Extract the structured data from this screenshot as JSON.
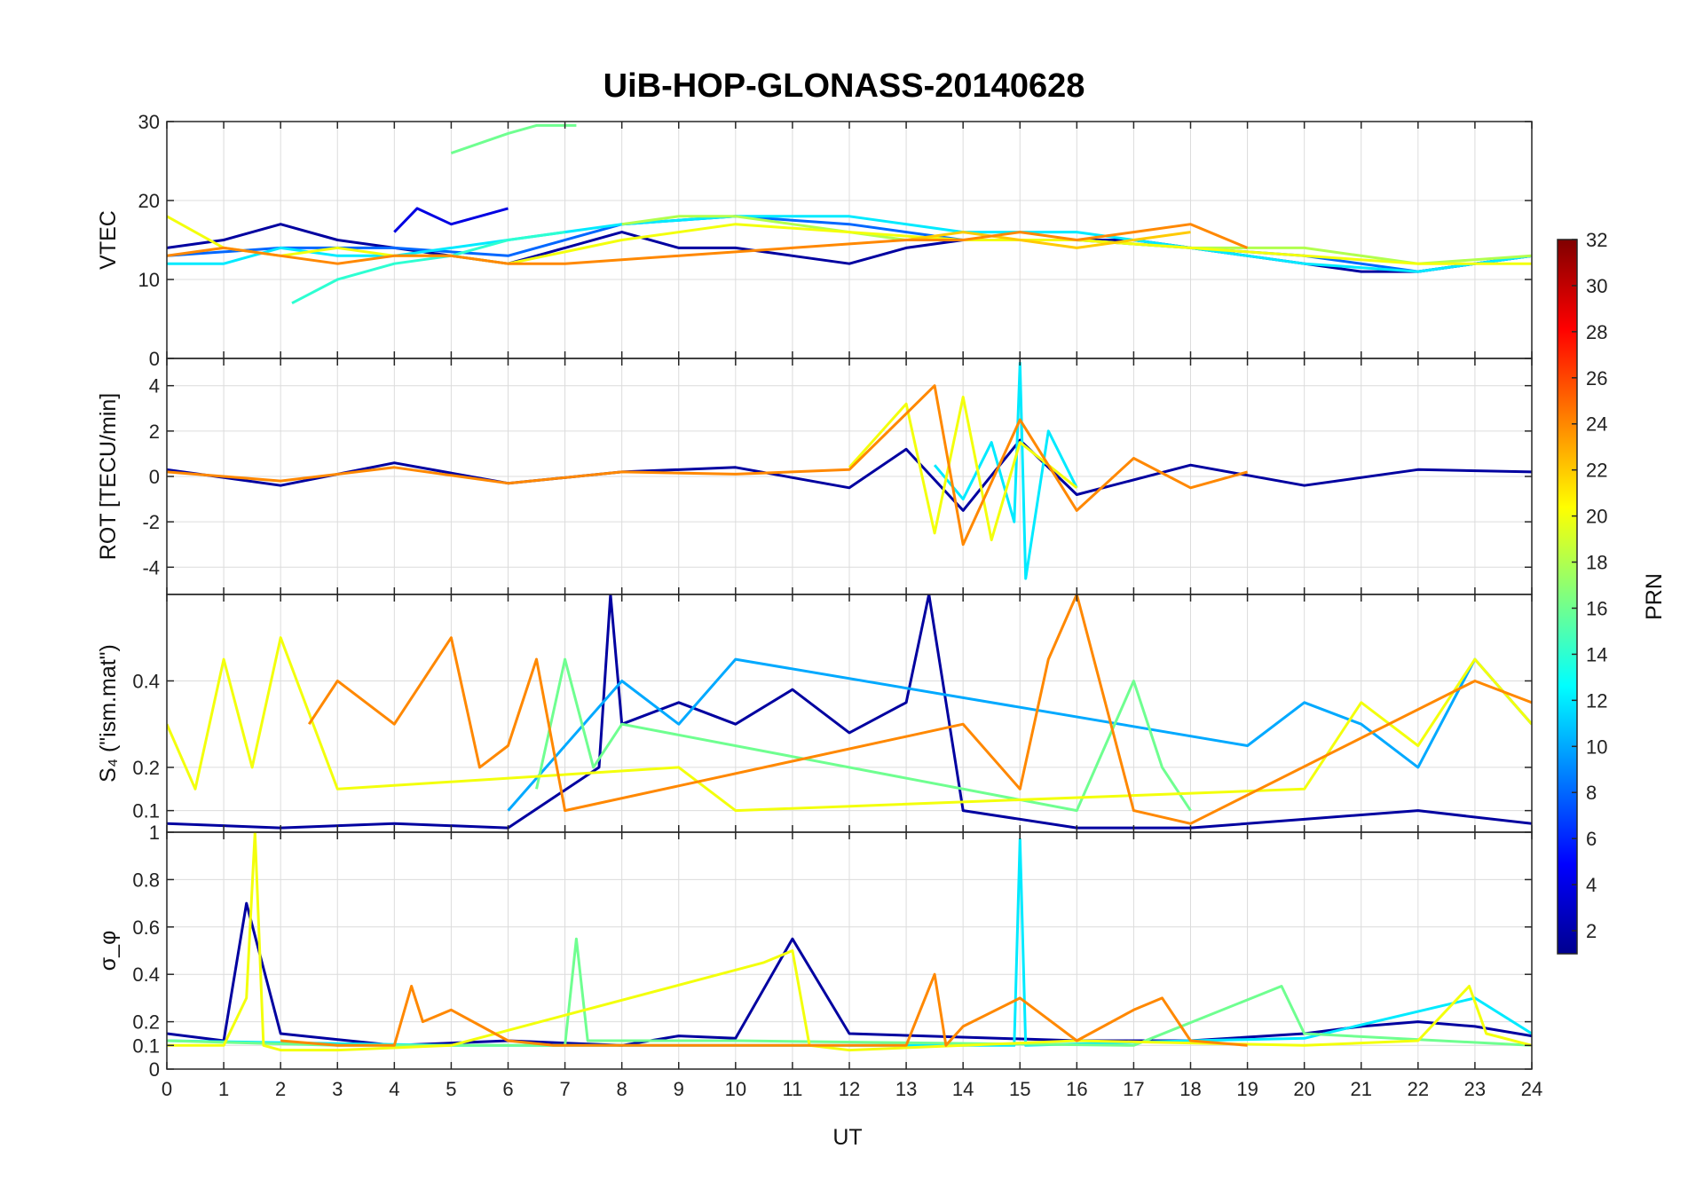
{
  "figure": {
    "title": "UiB-HOP-GLONASS-20140628",
    "xlabel": "UT"
  },
  "chart_data": [
    {
      "type": "line",
      "panel": "vtec",
      "title": "UiB-HOP-GLONASS-20140628",
      "ylabel": "VTEC",
      "xlim": [
        0,
        24
      ],
      "ylim": [
        0,
        30
      ],
      "xticks": [
        0,
        1,
        2,
        3,
        4,
        5,
        6,
        7,
        8,
        9,
        10,
        11,
        12,
        13,
        14,
        15,
        16,
        17,
        18,
        19,
        20,
        21,
        22,
        23,
        24
      ],
      "yticks": [
        0,
        10,
        20,
        30
      ],
      "series": [
        {
          "name": "PRN 2",
          "prn": 2,
          "x": [
            0,
            1,
            2,
            3,
            4,
            5,
            6,
            7,
            8,
            9,
            10,
            11,
            12,
            13,
            14,
            15,
            16,
            17,
            18,
            19,
            20,
            21,
            22,
            23,
            24
          ],
          "y": [
            14,
            15,
            17,
            15,
            14,
            13,
            12,
            14,
            16,
            14,
            14,
            13,
            12,
            14,
            15,
            15,
            15,
            15,
            14,
            13,
            12,
            11,
            11,
            12,
            13
          ]
        },
        {
          "name": "PRN 4",
          "prn": 4,
          "x": [
            4,
            4.4,
            5,
            6
          ],
          "y": [
            16,
            19,
            17,
            19
          ]
        },
        {
          "name": "PRN 8",
          "prn": 8,
          "x": [
            0,
            2,
            4,
            6,
            8,
            10,
            12,
            14,
            16,
            18,
            20,
            22,
            24
          ],
          "y": [
            13,
            14,
            14,
            13,
            17,
            18,
            17,
            15,
            15,
            14,
            13,
            11,
            13
          ]
        },
        {
          "name": "PRN 12",
          "prn": 12,
          "x": [
            0,
            1,
            2,
            3,
            4,
            6,
            8,
            10,
            12,
            14,
            16,
            18,
            20,
            22,
            24
          ],
          "y": [
            12,
            12,
            14,
            13,
            13,
            15,
            17,
            18,
            18,
            16,
            16,
            14,
            12,
            11,
            13
          ]
        },
        {
          "name": "PRN 14",
          "prn": 14,
          "x": [
            2.2,
            3,
            4,
            5,
            6,
            7
          ],
          "y": [
            7,
            10,
            12,
            13,
            15,
            16
          ]
        },
        {
          "name": "PRN 16",
          "prn": 16,
          "x": [
            5,
            6,
            6.5,
            7,
            7.2
          ],
          "y": [
            26,
            28.5,
            29.5,
            29.5,
            29.5
          ]
        },
        {
          "name": "PRN 18",
          "prn": 18,
          "x": [
            8,
            9,
            10,
            11,
            12,
            13,
            14,
            16,
            18,
            20,
            22,
            24
          ],
          "y": [
            17,
            18,
            18,
            17,
            16,
            15,
            15,
            15,
            14,
            14,
            12,
            13
          ]
        },
        {
          "name": "PRN 20",
          "prn": 20,
          "x": [
            0,
            1,
            2,
            3,
            4,
            5,
            6,
            8,
            10,
            12,
            14,
            16,
            18,
            20,
            22,
            24
          ],
          "y": [
            18,
            14,
            13,
            14,
            13,
            13,
            12,
            15,
            17,
            16,
            15,
            15,
            14,
            13,
            12,
            12
          ]
        },
        {
          "name": "PRN 22",
          "prn": 22,
          "x": [
            13,
            14,
            15,
            16,
            17,
            18
          ],
          "y": [
            15,
            16,
            15,
            14,
            15,
            16
          ]
        },
        {
          "name": "PRN 24",
          "prn": 24,
          "x": [
            0,
            1,
            2,
            3,
            4,
            5,
            6,
            7,
            13,
            14,
            15,
            16,
            17,
            18,
            19
          ],
          "y": [
            13,
            14,
            13,
            12,
            13,
            13,
            12,
            12,
            15,
            15,
            16,
            15,
            16,
            17,
            14
          ]
        }
      ]
    },
    {
      "type": "line",
      "panel": "rot",
      "ylabel": "ROT [TECU/min]",
      "xlim": [
        0,
        24
      ],
      "ylim": [
        -5.2,
        5.2
      ],
      "yticks": [
        -4,
        -2,
        0,
        2,
        4
      ],
      "series": [
        {
          "name": "PRN 2",
          "prn": 2,
          "x": [
            0,
            2,
            4,
            6,
            8,
            10,
            12,
            13,
            14,
            15,
            16,
            18,
            20,
            22,
            24
          ],
          "y": [
            0.3,
            -0.4,
            0.6,
            -0.3,
            0.2,
            0.4,
            -0.5,
            1.2,
            -1.5,
            1.6,
            -0.8,
            0.5,
            -0.4,
            0.3,
            0.2
          ]
        },
        {
          "name": "PRN 12",
          "prn": 12,
          "x": [
            13.5,
            14,
            14.5,
            14.9,
            15,
            15.1,
            15.5,
            16
          ],
          "y": [
            0.5,
            -1,
            1.5,
            -2,
            5,
            -4.5,
            2,
            -0.5
          ]
        },
        {
          "name": "PRN 20",
          "prn": 20,
          "x": [
            12,
            13,
            13.5,
            14,
            14.5,
            15,
            16
          ],
          "y": [
            0.4,
            3.2,
            -2.5,
            3.5,
            -2.8,
            1.5,
            -0.5
          ]
        },
        {
          "name": "PRN 24",
          "prn": 24,
          "x": [
            0,
            2,
            4,
            6,
            8,
            10,
            12,
            13.5,
            14,
            15,
            16,
            17,
            18,
            19
          ],
          "y": [
            0.2,
            -0.2,
            0.4,
            -0.3,
            0.2,
            0.1,
            0.3,
            4,
            -3,
            2.5,
            -1.5,
            0.8,
            -0.5,
            0.2
          ]
        }
      ]
    },
    {
      "type": "line",
      "panel": "s4",
      "ylabel": "S₄ (\"ism.mat\")",
      "xlim": [
        0,
        24
      ],
      "ylim": [
        0.05,
        0.6
      ],
      "yticks": [
        0.1,
        0.2,
        0.4
      ],
      "series": [
        {
          "name": "PRN 2",
          "prn": 2,
          "x": [
            0,
            2,
            4,
            6,
            7.6,
            7.8,
            8,
            9,
            10,
            11,
            12,
            13,
            13.4,
            14,
            16,
            18,
            20,
            22,
            24
          ],
          "y": [
            0.07,
            0.06,
            0.07,
            0.06,
            0.2,
            0.6,
            0.3,
            0.35,
            0.3,
            0.38,
            0.28,
            0.35,
            0.6,
            0.1,
            0.06,
            0.06,
            0.08,
            0.1,
            0.07
          ]
        },
        {
          "name": "PRN 10",
          "prn": 10,
          "x": [
            6,
            8,
            9,
            10,
            19,
            20,
            21,
            22,
            23,
            24
          ],
          "y": [
            0.1,
            0.4,
            0.3,
            0.45,
            0.25,
            0.35,
            0.3,
            0.2,
            0.45,
            0.3
          ]
        },
        {
          "name": "PRN 16",
          "prn": 16,
          "x": [
            6.5,
            7,
            7.5,
            8,
            16,
            17,
            17.5,
            18
          ],
          "y": [
            0.15,
            0.45,
            0.2,
            0.3,
            0.1,
            0.4,
            0.2,
            0.1
          ]
        },
        {
          "name": "PRN 20",
          "prn": 20,
          "x": [
            0,
            0.5,
            1,
            1.5,
            2,
            3,
            9,
            10,
            20,
            21,
            22,
            23,
            24
          ],
          "y": [
            0.3,
            0.15,
            0.45,
            0.2,
            0.5,
            0.15,
            0.2,
            0.1,
            0.15,
            0.35,
            0.25,
            0.45,
            0.3
          ]
        },
        {
          "name": "PRN 24",
          "prn": 24,
          "x": [
            2.5,
            3,
            4,
            5,
            5.5,
            6,
            6.5,
            7,
            14,
            15,
            15.5,
            16,
            17,
            18,
            23,
            24
          ],
          "y": [
            0.3,
            0.4,
            0.3,
            0.5,
            0.2,
            0.25,
            0.45,
            0.1,
            0.3,
            0.15,
            0.45,
            0.6,
            0.1,
            0.07,
            0.4,
            0.35
          ]
        }
      ]
    },
    {
      "type": "line",
      "panel": "sigma",
      "ylabel": "σ_φ",
      "xlim": [
        0,
        24
      ],
      "ylim": [
        0,
        1
      ],
      "yticks": [
        0,
        0.1,
        0.2,
        0.4,
        0.6,
        0.8,
        1
      ],
      "series": [
        {
          "name": "PRN 2",
          "prn": 2,
          "x": [
            0,
            1,
            1.4,
            2,
            4,
            6,
            8,
            9,
            10,
            11,
            12,
            16,
            18,
            20,
            21,
            22,
            23,
            24
          ],
          "y": [
            0.15,
            0.12,
            0.7,
            0.15,
            0.1,
            0.12,
            0.1,
            0.14,
            0.13,
            0.55,
            0.15,
            0.12,
            0.12,
            0.15,
            0.18,
            0.2,
            0.18,
            0.14
          ]
        },
        {
          "name": "PRN 12",
          "prn": 12,
          "x": [
            0,
            5,
            10,
            14.9,
            15,
            15.1,
            18,
            20,
            23,
            24
          ],
          "y": [
            0.12,
            0.1,
            0.1,
            0.1,
            0.97,
            0.1,
            0.12,
            0.13,
            0.3,
            0.15
          ]
        },
        {
          "name": "PRN 16",
          "prn": 16,
          "x": [
            0,
            3,
            7,
            7.2,
            7.4,
            10,
            17,
            19.6,
            20,
            24
          ],
          "y": [
            0.12,
            0.1,
            0.1,
            0.55,
            0.12,
            0.12,
            0.1,
            0.35,
            0.15,
            0.1
          ]
        },
        {
          "name": "PRN 20",
          "prn": 20,
          "x": [
            0,
            1,
            1.4,
            1.55,
            1.7,
            2,
            3,
            5,
            10.5,
            11,
            11.3,
            12,
            14,
            16,
            20,
            22,
            22.9,
            23.2,
            24
          ],
          "y": [
            0.1,
            0.1,
            0.3,
            1,
            0.1,
            0.08,
            0.08,
            0.1,
            0.45,
            0.5,
            0.1,
            0.08,
            0.1,
            0.12,
            0.1,
            0.12,
            0.35,
            0.15,
            0.1
          ]
        },
        {
          "name": "PRN 24",
          "prn": 24,
          "x": [
            2,
            3,
            4,
            4.3,
            4.5,
            5,
            6,
            6.8,
            13,
            13.5,
            13.7,
            14,
            15,
            16,
            17,
            17.5,
            18,
            19
          ],
          "y": [
            0.12,
            0.1,
            0.1,
            0.35,
            0.2,
            0.25,
            0.12,
            0.1,
            0.1,
            0.4,
            0.1,
            0.18,
            0.3,
            0.12,
            0.25,
            0.3,
            0.12,
            0.1
          ]
        }
      ]
    }
  ],
  "colorbar": {
    "label": "PRN",
    "range": [
      1,
      32
    ],
    "ticks": [
      2,
      4,
      6,
      8,
      10,
      12,
      14,
      16,
      18,
      20,
      22,
      24,
      26,
      28,
      30,
      32
    ],
    "colormap": "jet"
  }
}
